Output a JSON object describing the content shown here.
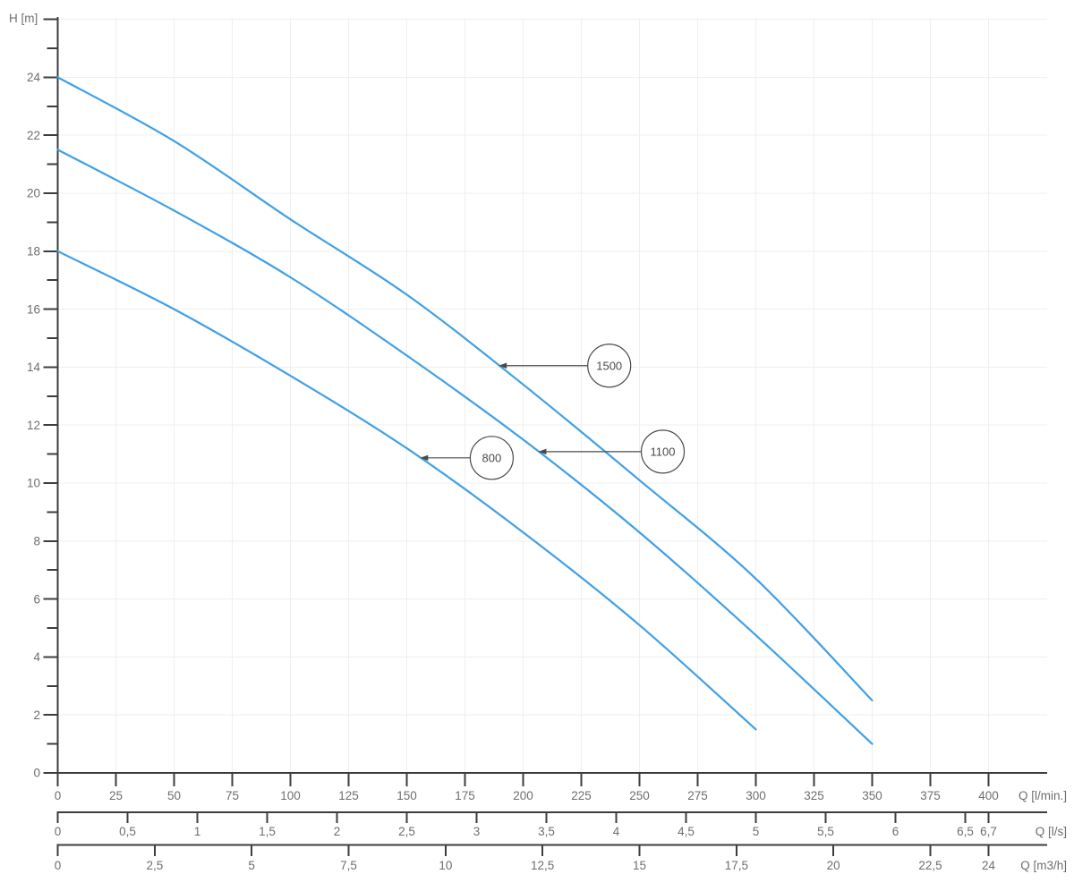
{
  "chart_data": {
    "type": "line",
    "title": "",
    "y_axis": {
      "label": "H [m]",
      "unit": "m",
      "min": 0,
      "max": 26,
      "labeled_ticks": [
        0,
        2,
        4,
        6,
        8,
        10,
        12,
        14,
        16,
        18,
        20,
        22,
        24
      ],
      "minor_ticks": [
        1,
        3,
        5,
        7,
        9,
        11,
        13,
        15,
        17,
        19,
        21,
        23,
        25
      ],
      "end_tick": 26,
      "gridline_step": 2
    },
    "x_range_lmin": [
      0,
      400
    ],
    "x_axes": [
      {
        "label": "Q [l/min.]",
        "ticks": [
          {
            "q": 0,
            "label": "0"
          },
          {
            "q": 25,
            "label": "25"
          },
          {
            "q": 50,
            "label": "50"
          },
          {
            "q": 75,
            "label": "75"
          },
          {
            "q": 100,
            "label": "100"
          },
          {
            "q": 125,
            "label": "125"
          },
          {
            "q": 150,
            "label": "150"
          },
          {
            "q": 175,
            "label": "175"
          },
          {
            "q": 200,
            "label": "200"
          },
          {
            "q": 225,
            "label": "225"
          },
          {
            "q": 250,
            "label": "250"
          },
          {
            "q": 275,
            "label": "275"
          },
          {
            "q": 300,
            "label": "300"
          },
          {
            "q": 325,
            "label": "325"
          },
          {
            "q": 350,
            "label": "350"
          },
          {
            "q": 375,
            "label": "375"
          },
          {
            "q": 400,
            "label": "400"
          }
        ]
      },
      {
        "label": "Q [l/s]",
        "ticks": [
          {
            "q": 0,
            "label": "0"
          },
          {
            "q": 30,
            "label": "0,5"
          },
          {
            "q": 60,
            "label": "1"
          },
          {
            "q": 90,
            "label": "1,5"
          },
          {
            "q": 120,
            "label": "2"
          },
          {
            "q": 150,
            "label": "2,5"
          },
          {
            "q": 180,
            "label": "3"
          },
          {
            "q": 210,
            "label": "3,5"
          },
          {
            "q": 240,
            "label": "4"
          },
          {
            "q": 270,
            "label": "4,5"
          },
          {
            "q": 300,
            "label": "5"
          },
          {
            "q": 330,
            "label": "5,5"
          },
          {
            "q": 360,
            "label": "6"
          },
          {
            "q": 390,
            "label": "6,5"
          },
          {
            "q": 400,
            "label": "6,7"
          }
        ]
      },
      {
        "label": "Q [m3/h]",
        "ticks": [
          {
            "q": 0,
            "label": "0"
          },
          {
            "q": 41.67,
            "label": "2,5"
          },
          {
            "q": 83.33,
            "label": "5"
          },
          {
            "q": 125,
            "label": "7,5"
          },
          {
            "q": 166.67,
            "label": "10"
          },
          {
            "q": 208.33,
            "label": "12,5"
          },
          {
            "q": 250,
            "label": "15"
          },
          {
            "q": 291.67,
            "label": "17,5"
          },
          {
            "q": 333.33,
            "label": "20"
          },
          {
            "q": 375,
            "label": "22,5"
          },
          {
            "q": 400,
            "label": "24"
          }
        ]
      }
    ],
    "series": [
      {
        "name": "1500",
        "points": [
          [
            0,
            24
          ],
          [
            50,
            21.8
          ],
          [
            100,
            19.1
          ],
          [
            150,
            16.5
          ],
          [
            200,
            13.4
          ],
          [
            250,
            10.1
          ],
          [
            300,
            6.7
          ],
          [
            350,
            2.5
          ]
        ]
      },
      {
        "name": "1100",
        "points": [
          [
            0,
            21.5
          ],
          [
            50,
            19.4
          ],
          [
            100,
            17.1
          ],
          [
            150,
            14.4
          ],
          [
            200,
            11.5
          ],
          [
            250,
            8.3
          ],
          [
            300,
            4.75
          ],
          [
            350,
            1.0
          ]
        ]
      },
      {
        "name": "800",
        "points": [
          [
            0,
            18
          ],
          [
            50,
            16.0
          ],
          [
            100,
            13.7
          ],
          [
            150,
            11.2
          ],
          [
            200,
            8.3
          ],
          [
            250,
            5.1
          ],
          [
            300,
            1.5
          ]
        ]
      }
    ],
    "annotations": [
      {
        "text": "1500",
        "tip_q": 189.5,
        "circle_q": 237
      },
      {
        "text": "1100",
        "tip_q": 206.5,
        "circle_q": 260
      },
      {
        "text": "800",
        "tip_q": 155.7,
        "circle_q": 186.5
      }
    ],
    "colors": {
      "curve": "#3fa0e8",
      "axis": "#3d3d3d",
      "grid": "#efefef",
      "text": "#6e6e6e",
      "annotation": "#4a4a4a",
      "background": "#ffffff"
    }
  }
}
